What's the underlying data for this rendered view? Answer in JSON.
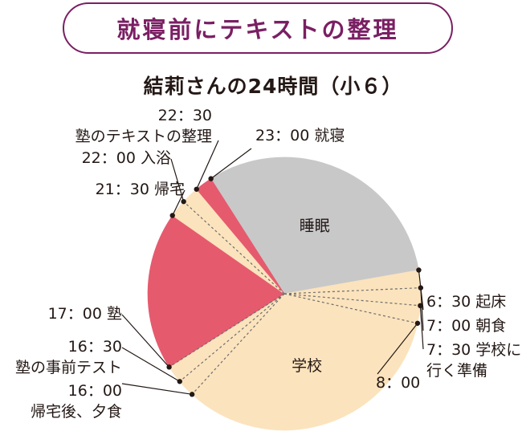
{
  "banner": {
    "title": "就寝前にテキストの整理"
  },
  "colors": {
    "sleep": "#c8c8c9",
    "school": "#fbe3bd",
    "juku": "#e65a6e",
    "outline": "#7a1f63",
    "marker": "#231815",
    "leader": "#6e6e6e"
  },
  "chart_data": {
    "type": "pie",
    "title": "結莉さんの24時間（小６）",
    "segments": [
      {
        "start": "23:00",
        "end": "6:30",
        "label": "睡眠",
        "color": "#c8c8c9"
      },
      {
        "start": "6:30",
        "end": "7:00",
        "label": "",
        "color": "#fbe3bd"
      },
      {
        "start": "7:00",
        "end": "7:30",
        "label": "",
        "color": "#fbe3bd"
      },
      {
        "start": "7:30",
        "end": "8:00",
        "label": "",
        "color": "#fbe3bd"
      },
      {
        "start": "8:00",
        "end": "16:00",
        "label": "学校",
        "color": "#fbe3bd"
      },
      {
        "start": "16:00",
        "end": "16:30",
        "label": "",
        "color": "#fbe3bd"
      },
      {
        "start": "16:30",
        "end": "17:00",
        "label": "",
        "color": "#fbe3bd"
      },
      {
        "start": "17:00",
        "end": "21:30",
        "label": "",
        "color": "#e65a6e"
      },
      {
        "start": "21:30",
        "end": "22:00",
        "label": "",
        "color": "#fbe3bd"
      },
      {
        "start": "22:00",
        "end": "22:30",
        "label": "",
        "color": "#fbe3bd"
      },
      {
        "start": "22:30",
        "end": "23:00",
        "label": "",
        "color": "#e65a6e"
      }
    ],
    "annotations": [
      {
        "time": "23:00",
        "lines": [
          "23：00 就寝"
        ]
      },
      {
        "time": "6:30",
        "lines": [
          "6：30 起床"
        ]
      },
      {
        "time": "7:00",
        "lines": [
          "7：00 朝食"
        ]
      },
      {
        "time": "7:30",
        "lines": [
          "7：30 学校に",
          "行く準備"
        ]
      },
      {
        "time": "8:00",
        "lines": [
          "8：00"
        ]
      },
      {
        "time": "16:00",
        "lines": [
          "16：00",
          "帰宅後、夕食"
        ]
      },
      {
        "time": "16:30",
        "lines": [
          "16：30",
          "塾の事前テスト"
        ]
      },
      {
        "time": "17:00",
        "lines": [
          "17：00 塾"
        ]
      },
      {
        "time": "21:30",
        "lines": [
          "21：30 帰宅"
        ]
      },
      {
        "time": "22:00",
        "lines": [
          "22：00 入浴"
        ]
      },
      {
        "time": "22:30",
        "lines": [
          "22：30",
          "塾のテキストの整理"
        ]
      }
    ]
  }
}
